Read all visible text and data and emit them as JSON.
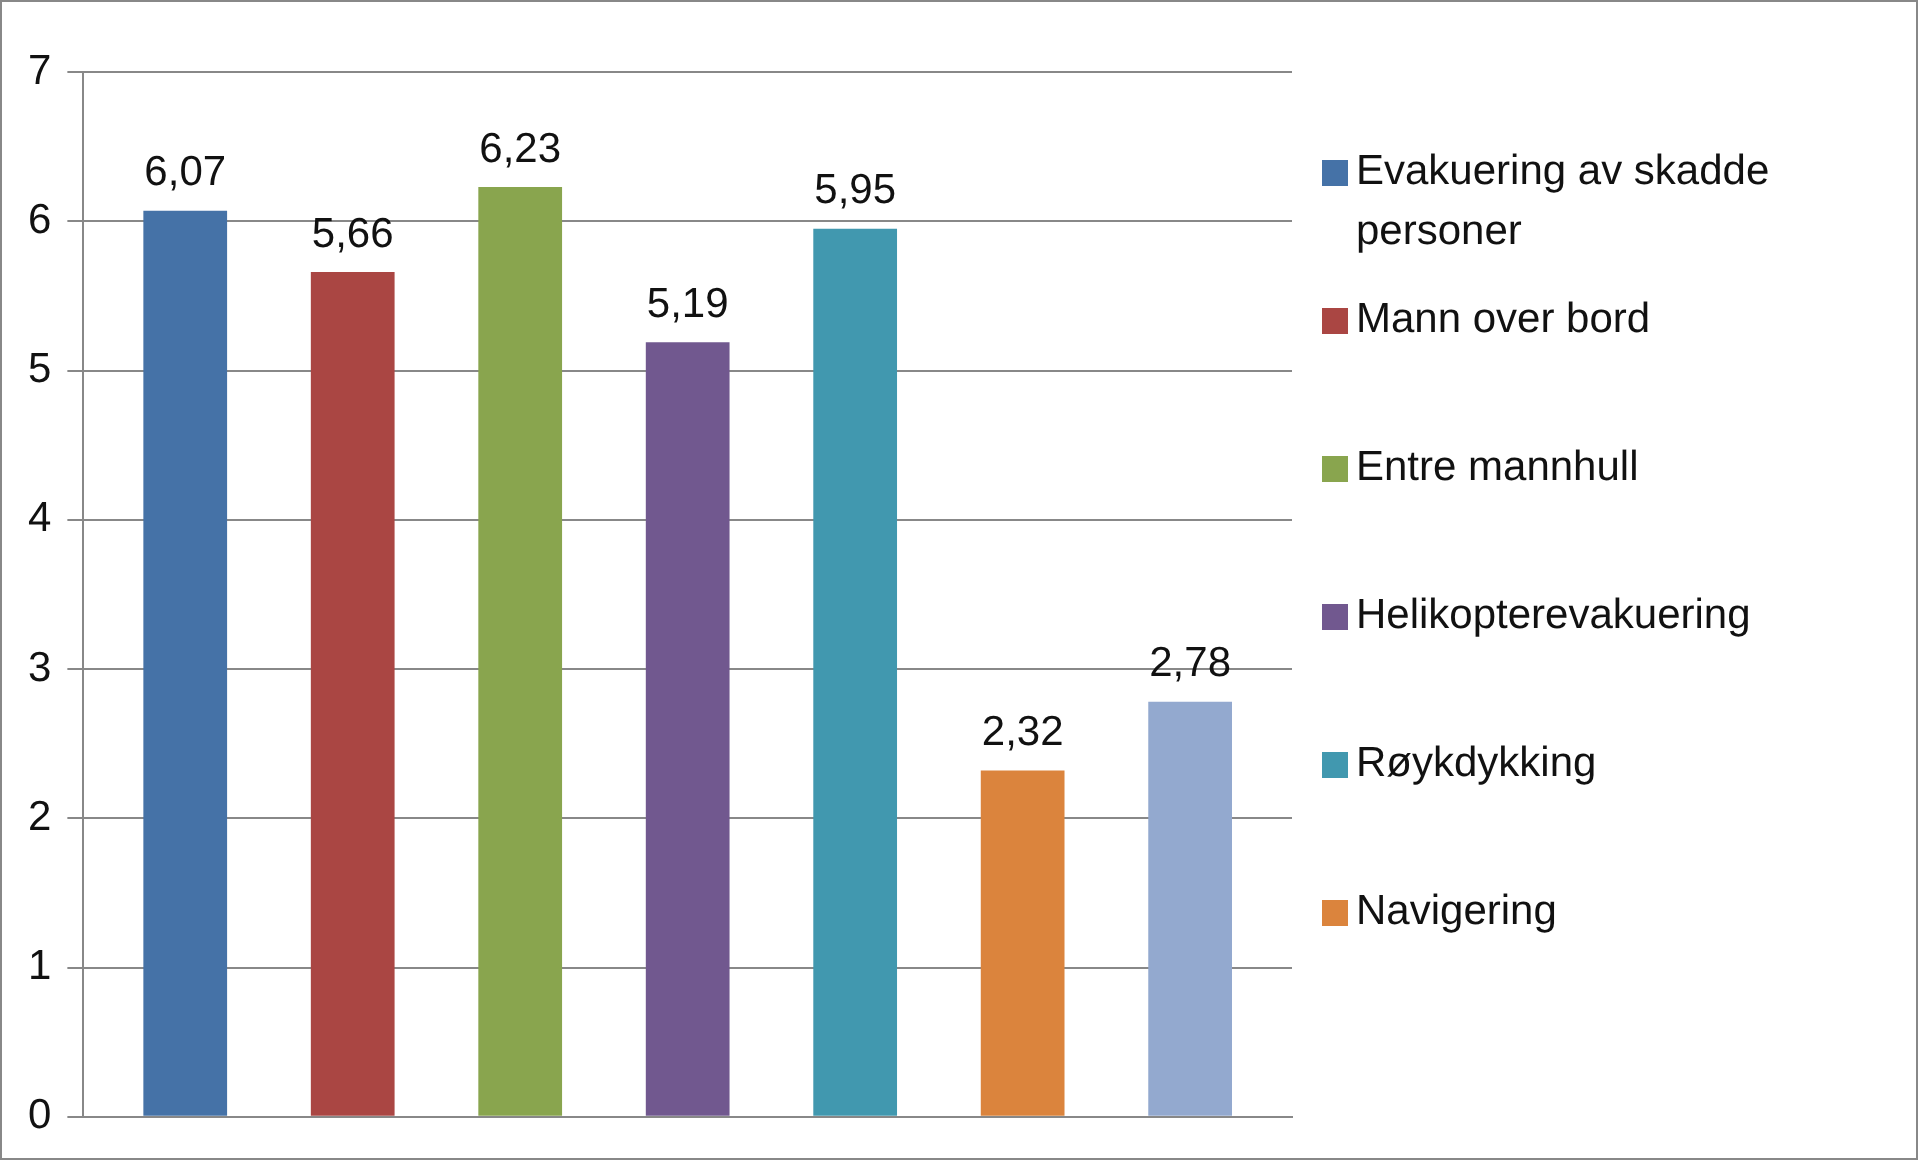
{
  "chart_data": {
    "type": "bar",
    "categories": [
      null
    ],
    "series": [
      {
        "name": "Evakuering av skadde personer",
        "color": "#4572a7",
        "values": [
          6.07
        ],
        "value_labels": [
          "6,07"
        ]
      },
      {
        "name": "Mann over bord",
        "color": "#aa4643",
        "values": [
          5.66
        ],
        "value_labels": [
          "5,66"
        ]
      },
      {
        "name": "Entre mannhull",
        "color": "#89a54e",
        "values": [
          6.23
        ],
        "value_labels": [
          "6,23"
        ]
      },
      {
        "name": "Helikopterevakuering",
        "color": "#71588f",
        "values": [
          5.19
        ],
        "value_labels": [
          "5,19"
        ]
      },
      {
        "name": "Røykdykking",
        "color": "#4198af",
        "values": [
          5.95
        ],
        "value_labels": [
          "5,95"
        ]
      },
      {
        "name": "Navigering",
        "color": "#db843d",
        "values": [
          2.32
        ],
        "value_labels": [
          "2,32"
        ]
      },
      {
        "color": "#93a9cf",
        "values": [
          2.78
        ],
        "value_labels": [
          "2,78"
        ]
      }
    ],
    "ylim": [
      0,
      7
    ],
    "yticks": [
      0,
      1,
      2,
      3,
      4,
      5,
      6,
      7
    ],
    "grid": "y",
    "legend": "right"
  }
}
